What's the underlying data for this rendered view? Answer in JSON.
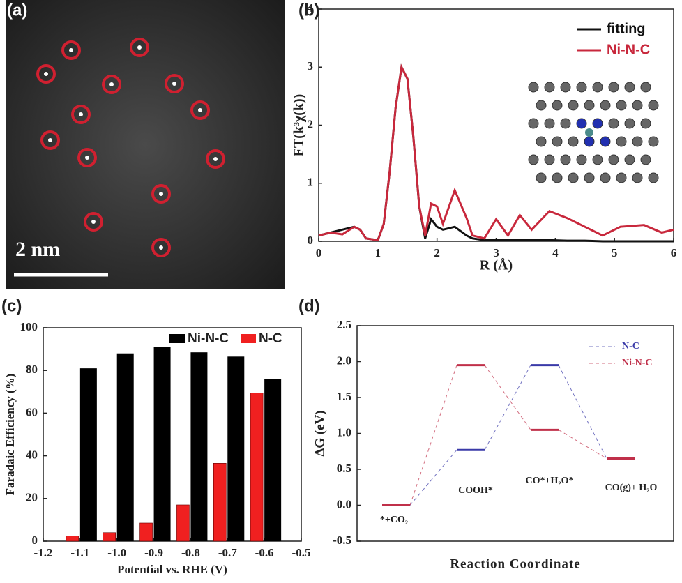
{
  "chart_data": [
    {
      "type": "image",
      "panel_label": "(a)",
      "scale_bar": "2 nm"
    },
    {
      "type": "line",
      "panel_label": "(b)",
      "xlabel": "R (Å)",
      "ylabel": "FT(k³χ(k))",
      "x": [
        0,
        0.2,
        0.4,
        0.6,
        0.7,
        0.8,
        1.0,
        1.1,
        1.2,
        1.3,
        1.4,
        1.5,
        1.6,
        1.7,
        1.8,
        1.9,
        2.0,
        2.1,
        2.3,
        2.5,
        2.6,
        2.8,
        3.0,
        3.2,
        3.4,
        3.6,
        3.9,
        4.2,
        4.5,
        4.8,
        5.1,
        5.5,
        5.8,
        6.0
      ],
      "series": [
        {
          "name": "fitting",
          "color": "#111111",
          "values": [
            0.1,
            0.15,
            0.2,
            0.25,
            0.2,
            0.05,
            0.02,
            0.3,
            1.2,
            2.3,
            3.0,
            2.8,
            1.8,
            0.6,
            0.05,
            0.38,
            0.25,
            0.2,
            0.25,
            0.1,
            0.05,
            0.02,
            0.03,
            0.02,
            0.02,
            0.02,
            0.02,
            0.01,
            0.01,
            0,
            0,
            0,
            0,
            0
          ]
        },
        {
          "name": "Ni-N-C",
          "color": "#c8283c",
          "values": [
            0.1,
            0.15,
            0.12,
            0.25,
            0.2,
            0.05,
            0.02,
            0.3,
            1.2,
            2.3,
            3.0,
            2.8,
            1.8,
            0.6,
            0.1,
            0.65,
            0.6,
            0.3,
            0.88,
            0.4,
            0.1,
            0.05,
            0.38,
            0.1,
            0.45,
            0.2,
            0.52,
            0.4,
            0.25,
            0.1,
            0.25,
            0.28,
            0.15,
            0.2
          ]
        }
      ],
      "xlim": [
        0,
        6
      ],
      "xticks": [
        0,
        1,
        2,
        3,
        4,
        5,
        6
      ],
      "ylim": [
        0,
        4
      ],
      "yticks": [
        0,
        1,
        2,
        3,
        4
      ]
    },
    {
      "type": "bar",
      "panel_label": "(c)",
      "xlabel": "Potential vs. RHE (V)",
      "ylabel": "Faradaic Efficiency (%)",
      "x": [
        -1.1,
        -1,
        -0.9,
        -0.8,
        -0.7,
        -0.6
      ],
      "series": [
        {
          "name": "Ni-N-C",
          "color": "#000000",
          "values": [
            81,
            88,
            91,
            88.5,
            86.5,
            76
          ]
        },
        {
          "name": "N-C",
          "color": "#f02020",
          "values": [
            2.5,
            4,
            8.5,
            17,
            36.5,
            69.5
          ]
        }
      ],
      "xlim": [
        -1.2,
        -0.5
      ],
      "xticks": [
        -1.2,
        -1.1,
        {
          "value": -1,
          "label": "-1.0"
        },
        -0.9,
        -0.8,
        -0.7,
        -0.6,
        -0.5
      ],
      "ylim": [
        0,
        100
      ],
      "yticks": [
        0,
        20,
        40,
        60,
        80,
        100
      ]
    },
    {
      "type": "energy",
      "panel_label": "(d)",
      "xlabel": "Reaction Coordinate",
      "ylabel": "ΔG (eV)",
      "categories": [
        "*+CO₂",
        "COOH*",
        "CO*+H₂O*",
        "CO(g)+ H₂O"
      ],
      "series": [
        {
          "name": "N-C",
          "color": "#3a3aa8",
          "values": [
            0,
            0.77,
            1.95,
            0.65
          ]
        },
        {
          "name": "Ni-N-C",
          "color": "#c0304a",
          "values": [
            0,
            1.95,
            1.05,
            0.65
          ]
        }
      ],
      "ylim": [
        -0.5,
        2.5
      ],
      "yticks": [
        -0.5,
        {
          "value": 0,
          "label": "0.0"
        },
        0.5,
        {
          "value": 1,
          "label": "1.0"
        },
        1.5,
        {
          "value": 2,
          "label": "2.0"
        },
        2.5
      ]
    }
  ]
}
